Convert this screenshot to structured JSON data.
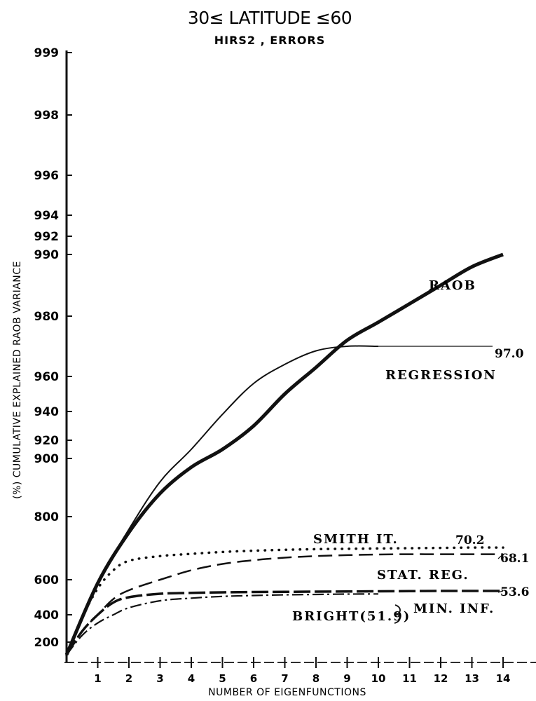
{
  "chart_data": {
    "type": "line",
    "title": "30≤ LATITUDE ≤60",
    "subtitle": "HIRS2 , ERRORS",
    "xlabel": "NUMBER OF EIGENFUNCTIONS",
    "ylabel": "(%) CUMULATIVE EXPLAINED RAOB VARIANCE",
    "xlim": [
      0,
      14
    ],
    "x_ticks": [
      "1",
      "2",
      "3",
      "4",
      "5",
      "6",
      "7",
      "8",
      "9",
      "10",
      "11",
      "12",
      "13",
      "14"
    ],
    "y_ticks": [
      "99.9",
      "99.8",
      "99.6",
      "99.4",
      "99.2",
      "99.0",
      "98.0",
      "96.0",
      "94.0",
      "92.0",
      "90.0",
      "80.0",
      "60.0",
      "40.0",
      "20.0"
    ],
    "y_tick_labels": [
      "999",
      "998",
      "996",
      "994",
      "992",
      "990",
      "980",
      "960",
      "940",
      "920",
      "900",
      "800",
      "600",
      "400",
      "200"
    ],
    "grid": false,
    "series": [
      {
        "name": "RAOB",
        "style": "solid-thick",
        "x": [
          0,
          1,
          2,
          3,
          4,
          5,
          6,
          7,
          8,
          9,
          10,
          11,
          12,
          13,
          14
        ],
        "y": [
          15,
          58,
          75,
          84,
          88.5,
          91,
          93,
          95,
          96.3,
          97.2,
          97.8,
          98.2,
          98.5,
          98.8,
          99.0
        ]
      },
      {
        "name": "REGRESSION",
        "style": "solid-thin",
        "x": [
          0,
          1,
          2,
          3,
          4,
          5,
          6,
          7,
          8,
          9,
          10
        ],
        "y": [
          15,
          58,
          76,
          86,
          91,
          93.8,
          95.6,
          96.4,
          96.85,
          97.0,
          97.0
        ],
        "end_label": "97.0"
      },
      {
        "name": "SMITH IT.",
        "style": "dotted",
        "x": [
          0,
          0.5,
          1,
          1.5,
          2,
          3,
          4,
          5,
          6,
          7,
          8,
          9,
          10,
          11,
          12,
          13,
          14
        ],
        "y": [
          15,
          38,
          55,
          63,
          66,
          67.5,
          68.2,
          68.8,
          69.2,
          69.5,
          69.7,
          69.8,
          69.9,
          70,
          70.1,
          70.2,
          70.2
        ],
        "end_label": "70.2"
      },
      {
        "name": "STAT. REG.",
        "style": "dashed",
        "x": [
          0,
          0.5,
          1,
          1.5,
          2,
          3,
          4,
          5,
          6,
          7,
          8,
          9,
          10,
          11,
          12,
          13,
          14
        ],
        "y": [
          15,
          28,
          40,
          49,
          54,
          60,
          63,
          65,
          66.2,
          67,
          67.5,
          67.8,
          68,
          68.1,
          68.1,
          68.1,
          68.1
        ],
        "end_label": "68.1"
      },
      {
        "name": "MIN. INF.",
        "style": "long-dash",
        "x": [
          0,
          0.5,
          1,
          1.5,
          2,
          3,
          4,
          5,
          6,
          7,
          8,
          9,
          10,
          11,
          12,
          13,
          14
        ],
        "y": [
          15,
          28,
          40,
          47,
          50,
          52,
          52.5,
          52.8,
          53,
          53.1,
          53.2,
          53.3,
          53.4,
          53.5,
          53.6,
          53.6,
          53.6
        ],
        "end_label": "53.6"
      },
      {
        "name": "BRIGHT(51.9)",
        "style": "dash-dot",
        "x": [
          0,
          0.5,
          1,
          1.5,
          2,
          3,
          4,
          5,
          6,
          7,
          8,
          9,
          10
        ],
        "y": [
          15,
          25,
          34,
          40,
          44,
          48,
          49.5,
          50.5,
          51,
          51.4,
          51.6,
          51.8,
          51.9
        ]
      }
    ]
  }
}
